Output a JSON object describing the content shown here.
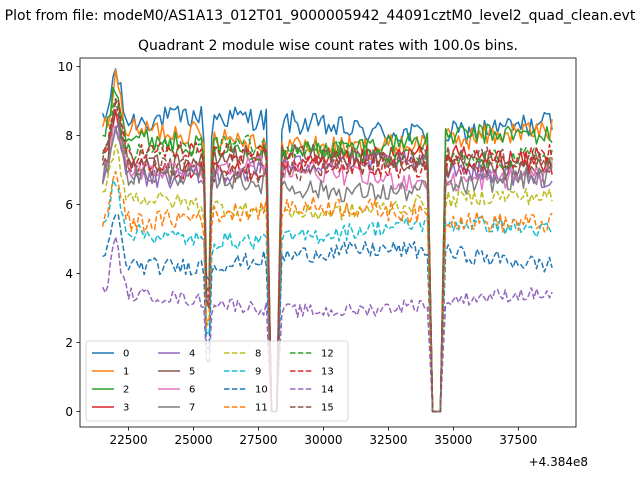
{
  "suptitle": "Plot from file: modeM0/AS1A13_012T01_9000005942_44091cztM0_level2_quad_clean.evt",
  "chart_data": {
    "type": "line",
    "title": "Quadrant 2 module wise count rates with 100.0s bins.",
    "xlabel": "",
    "ylabel": "",
    "x_offset_label": "+4.384e8",
    "x_offset": 438400000,
    "x_range": [
      21500,
      38850
    ],
    "x_bin": 100,
    "xlim": [
      20630,
      39720
    ],
    "ylim": [
      -0.45,
      10.25
    ],
    "xticks": [
      22500,
      25000,
      27500,
      30000,
      32500,
      35000,
      37500
    ],
    "yticks": [
      0,
      2,
      4,
      6,
      8,
      10
    ],
    "dips": [
      {
        "center": 25550,
        "halfwidth": 60,
        "depth": 0.55
      },
      {
        "center": 28100,
        "halfwidth": 150,
        "depth": 1.0
      },
      {
        "center": 34350,
        "halfwidth": 200,
        "depth": 1.0
      }
    ],
    "flare": {
      "center": 22000,
      "width": 260,
      "amplitude": 1.5
    },
    "legend": {
      "position": "lower-left",
      "ncol": 4
    },
    "series": [
      {
        "name": "0",
        "style": "solid",
        "color": "#1f77b4",
        "level": 8.3,
        "noise": 0.35
      },
      {
        "name": "1",
        "style": "solid",
        "color": "#ff7f0e",
        "level": 7.9,
        "noise": 0.35
      },
      {
        "name": "2",
        "style": "solid",
        "color": "#2ca02c",
        "level": 7.8,
        "noise": 0.3
      },
      {
        "name": "3",
        "style": "solid",
        "color": "#d62728",
        "level": 7.2,
        "noise": 0.3
      },
      {
        "name": "4",
        "style": "solid",
        "color": "#9467bd",
        "level": 7.0,
        "noise": 0.3
      },
      {
        "name": "5",
        "style": "solid",
        "color": "#8c564b",
        "level": 7.25,
        "noise": 0.3
      },
      {
        "name": "6",
        "style": "solid",
        "color": "#e377c2",
        "level": 6.9,
        "noise": 0.3
      },
      {
        "name": "7",
        "style": "solid",
        "color": "#7f7f7f",
        "level": 6.6,
        "noise": 0.3
      },
      {
        "name": "8",
        "style": "dashed",
        "color": "#bcbd22",
        "level": 6.0,
        "noise": 0.25
      },
      {
        "name": "9",
        "style": "dashed",
        "color": "#17becf",
        "level": 5.2,
        "noise": 0.25
      },
      {
        "name": "10",
        "style": "dashed",
        "color": "#1f77b4",
        "level": 4.45,
        "noise": 0.25
      },
      {
        "name": "11",
        "style": "dashed",
        "color": "#ff7f0e",
        "level": 5.7,
        "noise": 0.3
      },
      {
        "name": "12",
        "style": "dashed",
        "color": "#2ca02c",
        "level": 7.5,
        "noise": 0.3
      },
      {
        "name": "13",
        "style": "dashed",
        "color": "#d62728",
        "level": 7.3,
        "noise": 0.3
      },
      {
        "name": "14",
        "style": "dashed",
        "color": "#9467bd",
        "level": 3.15,
        "noise": 0.2
      },
      {
        "name": "15",
        "style": "dashed",
        "color": "#8c564b",
        "level": 7.15,
        "noise": 0.3
      }
    ]
  }
}
